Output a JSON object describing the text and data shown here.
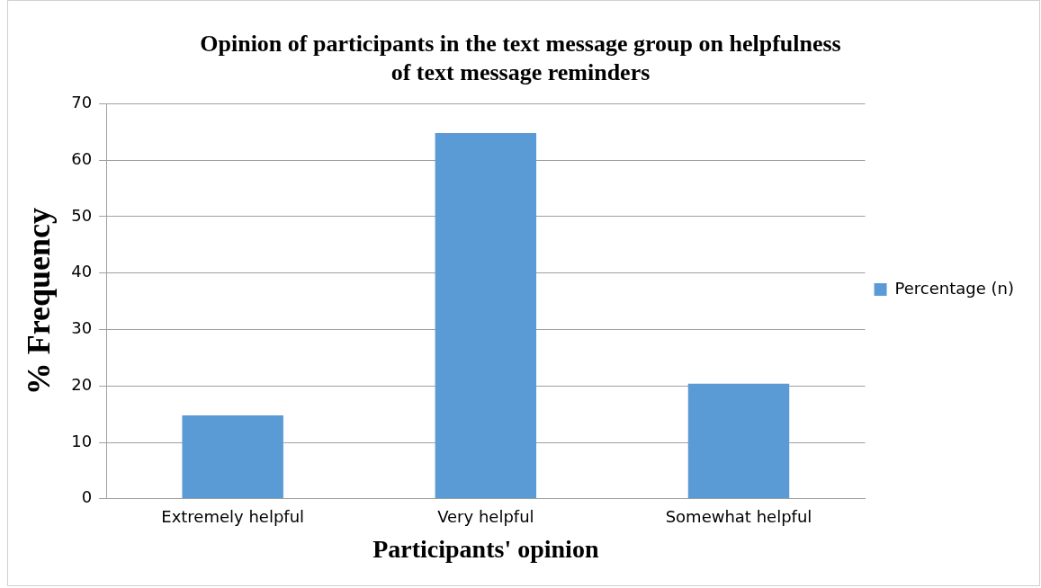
{
  "chart_data": {
    "type": "bar",
    "title": "Opinion of participants in the text message group on helpfulness\nof text message reminders",
    "xlabel": "Participants' opinion",
    "ylabel": "% Frequency",
    "categories": [
      "Extremely helpful",
      "Very helpful",
      "Somewhat helpful"
    ],
    "series": [
      {
        "name": "Percentage (n)",
        "color": "#5b9bd5",
        "values": [
          14.8,
          64.8,
          20.4
        ]
      }
    ],
    "ylim": [
      0,
      70
    ],
    "yticks": [
      0,
      10,
      20,
      30,
      40,
      50,
      60,
      70
    ],
    "grid": "y",
    "legend": "right"
  }
}
